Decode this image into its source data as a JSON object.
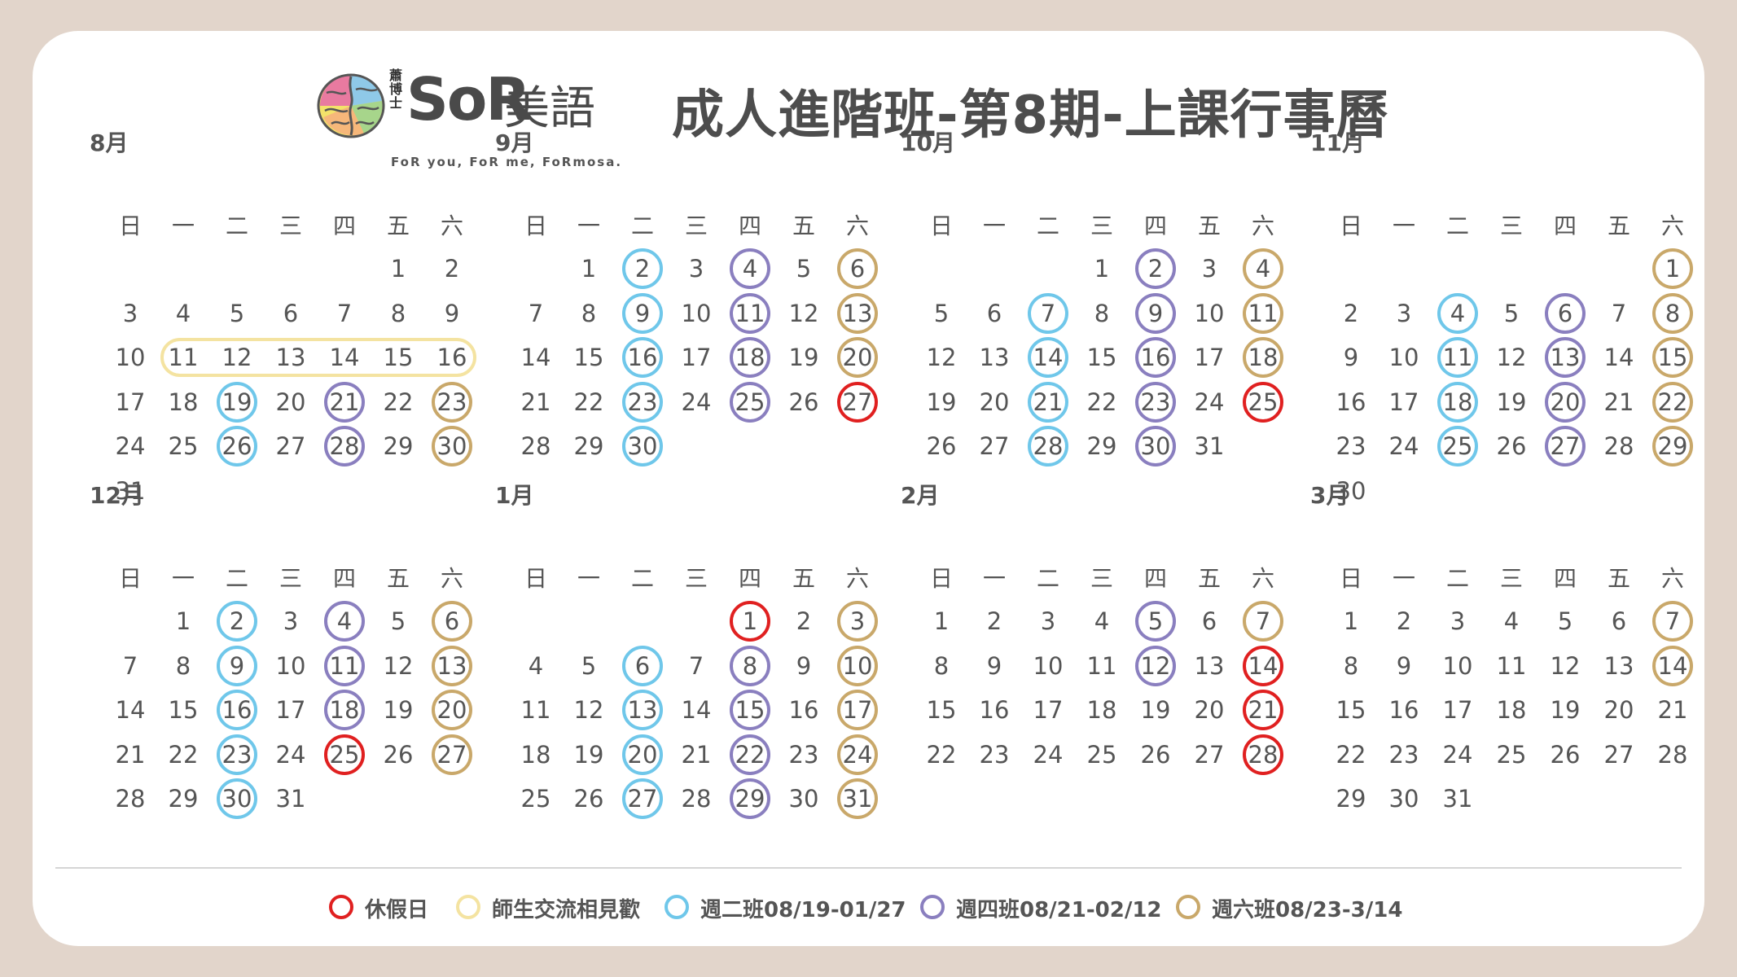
{
  "logo": {
    "small_text": "蕭博士",
    "brand": "SoR",
    "brand_cn": "美語",
    "tagline": "FoR you, FoR me, FoRmosa."
  },
  "title": "成人進階班-第8期-上課行事曆",
  "weekdays": [
    "日",
    "一",
    "二",
    "三",
    "四",
    "五",
    "六"
  ],
  "colors": {
    "tue": "#6fc7ea",
    "thu": "#8a7fbf",
    "sat": "#c9a86a",
    "off": "#e02020",
    "meetup": "#f4e3a1",
    "background": "#e2d5cb"
  },
  "months": [
    {
      "name": "8月",
      "start": 5,
      "days": 31,
      "tue": [
        19,
        26
      ],
      "thu": [
        21,
        28
      ],
      "sat": [
        23,
        30
      ],
      "off": [],
      "meetup": [
        11,
        16
      ]
    },
    {
      "name": "9月",
      "start": 1,
      "days": 30,
      "tue": [
        2,
        9,
        16,
        23,
        30
      ],
      "thu": [
        4,
        11,
        18,
        25
      ],
      "sat": [
        6,
        13,
        20
      ],
      "off": [
        27
      ],
      "meetup": null
    },
    {
      "name": "10月",
      "start": 3,
      "days": 31,
      "tue": [
        7,
        14,
        21,
        28
      ],
      "thu": [
        2,
        9,
        16,
        23,
        30
      ],
      "sat": [
        4,
        11,
        18
      ],
      "off": [
        25
      ],
      "meetup": null
    },
    {
      "name": "11月",
      "start": 6,
      "days": 30,
      "tue": [
        4,
        11,
        18,
        25
      ],
      "thu": [
        6,
        13,
        20,
        27
      ],
      "sat": [
        1,
        8,
        15,
        22,
        29
      ],
      "off": [],
      "meetup": null
    },
    {
      "name": "12月",
      "start": 1,
      "days": 31,
      "tue": [
        2,
        9,
        16,
        23,
        30
      ],
      "thu": [
        4,
        11,
        18
      ],
      "sat": [
        6,
        13,
        20,
        27
      ],
      "off": [
        25
      ],
      "meetup": null
    },
    {
      "name": "1月",
      "start": 4,
      "days": 31,
      "tue": [
        6,
        13,
        20,
        27
      ],
      "thu": [
        8,
        15,
        22,
        29
      ],
      "sat": [
        3,
        10,
        17,
        24,
        31
      ],
      "off": [
        1
      ],
      "meetup": null
    },
    {
      "name": "2月",
      "start": 0,
      "days": 28,
      "tue": [],
      "thu": [
        5,
        12
      ],
      "sat": [
        7
      ],
      "off": [
        14,
        21,
        28
      ],
      "meetup": null
    },
    {
      "name": "3月",
      "start": 0,
      "days": 31,
      "tue": [],
      "thu": [],
      "sat": [
        7,
        14
      ],
      "off": [],
      "meetup": null
    }
  ],
  "legend": [
    {
      "key": "off",
      "label": "休假日"
    },
    {
      "key": "meetup",
      "label": "師生交流相見歡"
    },
    {
      "key": "tue",
      "label": "週二班08/19-01/27"
    },
    {
      "key": "thu",
      "label": "週四班08/21-02/12"
    },
    {
      "key": "sat",
      "label": "週六班08/23-3/14"
    }
  ]
}
